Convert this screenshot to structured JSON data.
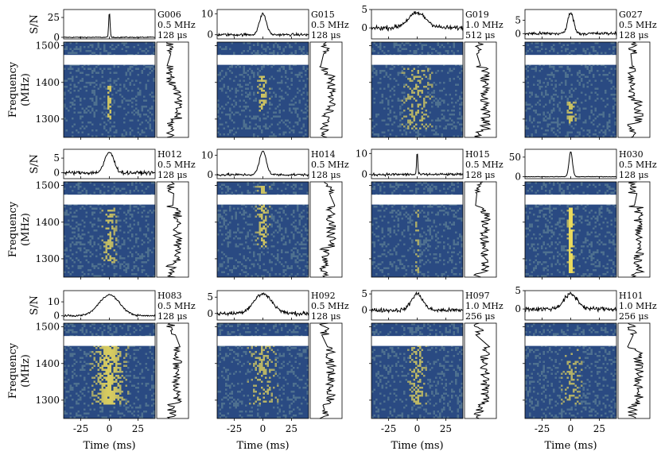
{
  "chart_data": {
    "type": "waterfall-grid",
    "description_fields": {
      "x_axis_label": "Time (ms)",
      "y_axis_label_freq_line1": "Frequency",
      "y_axis_label_freq_line2": "(MHz)",
      "y_axis_label_profile": "S/N"
    },
    "x_ticks": [
      -25,
      0,
      25
    ],
    "xlim": [
      -40,
      40
    ],
    "freq_ticks": [
      1300,
      1400,
      1500
    ],
    "freq_lim": [
      1250,
      1510
    ],
    "masked_band": [
      1448,
      1475
    ],
    "colors": {
      "waterfall_base": "#2a4a82",
      "waterfall_noise_light": "#6b8f9a",
      "waterfall_signal": "#f6e35a",
      "masked": "#ffffff",
      "line": "#000000"
    },
    "panels": [
      {
        "name": "G006",
        "res": "0.5 MHz",
        "time": "128 μs",
        "yticks": [
          0,
          25
        ],
        "ylim": [
          -2,
          35
        ],
        "peak": 31,
        "width": 0.6,
        "noise": 1,
        "signal": 0.9,
        "hot": [
          1300,
          1390
        ]
      },
      {
        "name": "G015",
        "res": "0.5 MHz",
        "time": "128 μs",
        "yticks": [
          0,
          10
        ],
        "ylim": [
          -2,
          12
        ],
        "peak": 10,
        "width": 3,
        "noise": 1,
        "signal": 0.6,
        "hot": [
          1320,
          1420
        ]
      },
      {
        "name": "G019",
        "res": "1.0 MHz",
        "time": "512 μs",
        "yticks": [
          0,
          5
        ],
        "ylim": [
          -3,
          5
        ],
        "peak": 4,
        "width": 8,
        "noise": 1,
        "signal": 0.4,
        "hot": [
          1270,
          1440
        ]
      },
      {
        "name": "G027",
        "res": "0.5 MHz",
        "time": "128 μs",
        "yticks": [
          0,
          5
        ],
        "ylim": [
          -2,
          9
        ],
        "peak": 8,
        "width": 2.5,
        "noise": 1,
        "signal": 0.6,
        "hot": [
          1290,
          1350
        ]
      },
      {
        "name": "H012",
        "res": "0.5 MHz",
        "time": "128 μs",
        "yticks": [
          0,
          5
        ],
        "ylim": [
          -2,
          8
        ],
        "peak": 7,
        "width": 4,
        "noise": 1,
        "signal": 0.5,
        "hot": [
          1290,
          1440
        ]
      },
      {
        "name": "H014",
        "res": "0.5 MHz",
        "time": "128 μs",
        "yticks": [
          0,
          10
        ],
        "ylim": [
          -2,
          13
        ],
        "peak": 12,
        "width": 3,
        "noise": 1,
        "signal": 0.6,
        "hot": [
          1330,
          1500
        ]
      },
      {
        "name": "H015",
        "res": "0.5 MHz",
        "time": "128 μs",
        "yticks": [
          0,
          10
        ],
        "ylim": [
          -2,
          12
        ],
        "peak": 11,
        "width": 0.5,
        "noise": 1,
        "signal": 0.4,
        "hot": [
          1260,
          1440
        ]
      },
      {
        "name": "H030",
        "res": "0.5 MHz",
        "time": "128 μs",
        "yticks": [
          0,
          50
        ],
        "ylim": [
          -5,
          70
        ],
        "peak": 64,
        "width": 1.5,
        "noise": 1,
        "signal": 1.0,
        "hot": [
          1260,
          1440
        ]
      },
      {
        "name": "H083",
        "res": "0.5 MHz",
        "time": "128 μs",
        "yticks": [
          0,
          10
        ],
        "ylim": [
          -3,
          18
        ],
        "peak": 15,
        "width": 9,
        "noise": 1,
        "signal": 0.7,
        "hot": [
          1290,
          1450
        ]
      },
      {
        "name": "H092",
        "res": "0.5 MHz",
        "time": "128 μs",
        "yticks": [
          0,
          5
        ],
        "ylim": [
          -2,
          7
        ],
        "peak": 6,
        "width": 8,
        "noise": 1,
        "signal": 0.4,
        "hot": [
          1290,
          1450
        ]
      },
      {
        "name": "H097",
        "res": "1.0 MHz",
        "time": "256 μs",
        "yticks": [
          0,
          5
        ],
        "ylim": [
          -3,
          6
        ],
        "peak": 5,
        "width": 5,
        "noise": 1,
        "signal": 0.45,
        "hot": [
          1290,
          1450
        ]
      },
      {
        "name": "H101",
        "res": "1.0 MHz",
        "time": "256 μs",
        "yticks": [
          0,
          5
        ],
        "ylim": [
          -3,
          5
        ],
        "peak": 4,
        "width": 6,
        "noise": 1,
        "signal": 0.35,
        "hot": [
          1290,
          1440
        ]
      }
    ]
  }
}
